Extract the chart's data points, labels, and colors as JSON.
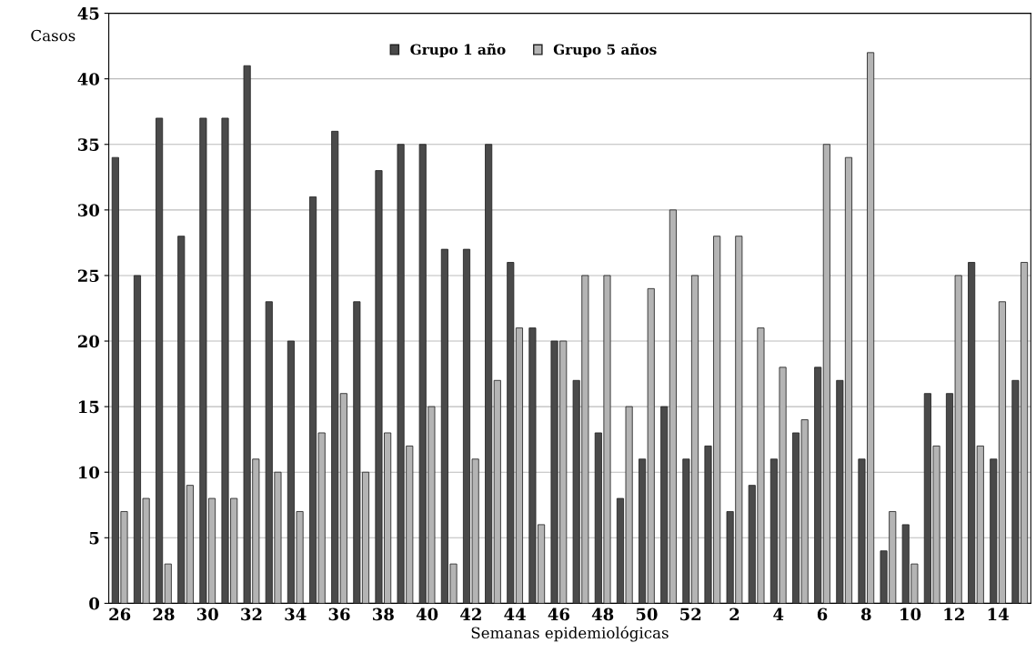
{
  "chart_data": {
    "type": "bar",
    "xlabel": "Semanas epidemiológicas",
    "ylabel": "Casos",
    "categories": [
      "26",
      null,
      "28",
      null,
      "30",
      null,
      "32",
      null,
      "34",
      null,
      "36",
      null,
      "38",
      null,
      "40",
      null,
      "42",
      null,
      "44",
      null,
      "46",
      null,
      "48",
      null,
      "50",
      null,
      "52",
      null,
      "2",
      null,
      "4",
      null,
      "6",
      null,
      "8",
      null,
      "10",
      null,
      "12",
      null,
      "14",
      null
    ],
    "series": [
      {
        "name": "Grupo 1 año",
        "color": "#4a4a4a",
        "values": [
          34,
          25,
          37,
          28,
          37,
          37,
          41,
          23,
          20,
          31,
          36,
          23,
          33,
          35,
          35,
          27,
          27,
          35,
          26,
          21,
          20,
          17,
          13,
          8,
          11,
          15,
          11,
          12,
          7,
          9,
          11,
          13,
          18,
          17,
          11,
          4,
          6,
          16,
          16,
          26,
          11,
          17
        ]
      },
      {
        "name": "Grupo 5 años",
        "color": "#b4b4b4",
        "values": [
          7,
          8,
          3,
          9,
          8,
          8,
          11,
          10,
          7,
          13,
          16,
          10,
          13,
          12,
          15,
          3,
          11,
          17,
          21,
          6,
          20,
          25,
          25,
          15,
          24,
          30,
          25,
          28,
          28,
          21,
          18,
          14,
          35,
          34,
          42,
          7,
          3,
          12,
          25,
          12,
          23,
          26
        ]
      }
    ],
    "ylim": [
      0,
      45
    ],
    "yticks": [
      0,
      5,
      10,
      15,
      20,
      25,
      30,
      35,
      40,
      45
    ],
    "grid": "y",
    "legend": "top"
  }
}
